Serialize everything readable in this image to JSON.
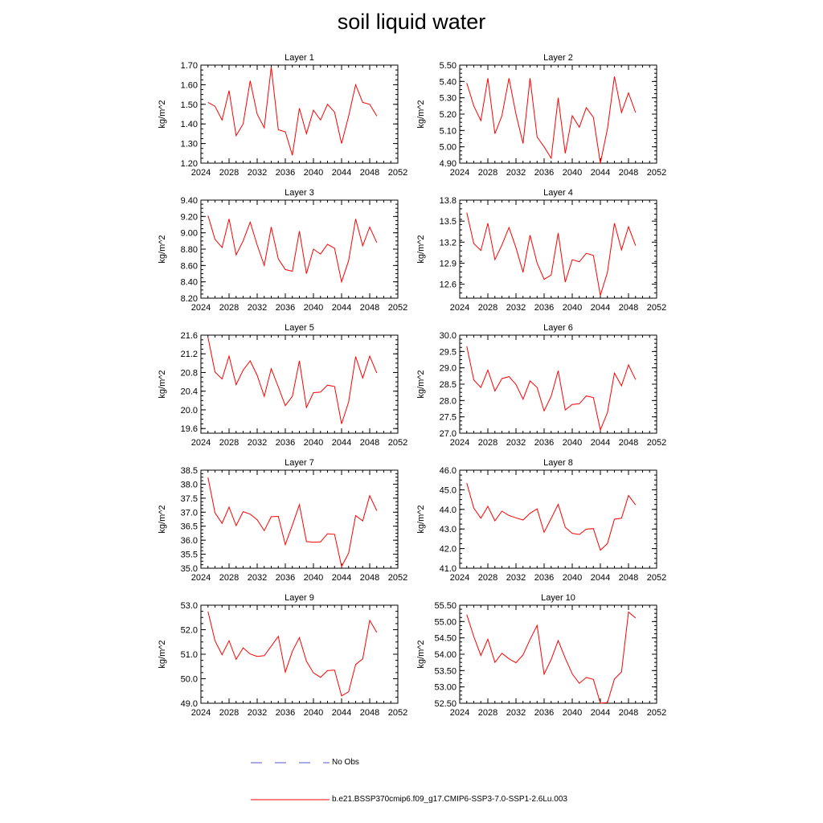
{
  "title": "soil liquid water",
  "legend": {
    "no_obs_label": "No Obs",
    "no_obs_color": "#5555cc",
    "model_label": "b.e21.BSSP370cmip6.f09_g17.CMIP6-SSP3-7.0-SSP1-2.6Lu.003",
    "model_color": "#ff0000"
  },
  "chart_data": [
    {
      "type": "line",
      "title": "Layer 1",
      "ylabel": "kg/m^2",
      "xlabel": "",
      "xlim": [
        2024,
        2052
      ],
      "xticks": [
        2024,
        2028,
        2032,
        2036,
        2040,
        2044,
        2048,
        2052
      ],
      "ylim": [
        1.2,
        1.7
      ],
      "yticks": [
        "1.20",
        "1.30",
        "1.40",
        "1.50",
        "1.60",
        "1.70"
      ],
      "x": [
        2025,
        2026,
        2027,
        2028,
        2029,
        2030,
        2031,
        2032,
        2033,
        2034,
        2035,
        2036,
        2037,
        2038,
        2039,
        2040,
        2041,
        2042,
        2043,
        2044,
        2045,
        2046,
        2047,
        2048,
        2049
      ],
      "series": [
        {
          "name": "b.e21.BSSP370cmip6.f09_g17.CMIP6-SSP3-7.0-SSP1-2.6Lu.003",
          "values": [
            1.51,
            1.49,
            1.42,
            1.57,
            1.34,
            1.4,
            1.62,
            1.45,
            1.38,
            1.69,
            1.37,
            1.36,
            1.24,
            1.48,
            1.35,
            1.47,
            1.42,
            1.5,
            1.46,
            1.3,
            1.44,
            1.6,
            1.51,
            1.5,
            1.44
          ]
        }
      ]
    },
    {
      "type": "line",
      "title": "Layer 2",
      "ylabel": "kg/m^2",
      "xlabel": "",
      "xlim": [
        2024,
        2052
      ],
      "xticks": [
        2024,
        2028,
        2032,
        2036,
        2040,
        2044,
        2048,
        2052
      ],
      "ylim": [
        4.9,
        5.5
      ],
      "yticks": [
        "4.90",
        "5.00",
        "5.10",
        "5.20",
        "5.30",
        "5.40",
        "5.50"
      ],
      "x": [
        2025,
        2026,
        2027,
        2028,
        2029,
        2030,
        2031,
        2032,
        2033,
        2034,
        2035,
        2036,
        2037,
        2038,
        2039,
        2040,
        2041,
        2042,
        2043,
        2044,
        2045,
        2046,
        2047,
        2048,
        2049
      ],
      "series": [
        {
          "name": "b.e21.BSSP370cmip6.f09_g17.CMIP6-SSP3-7.0-SSP1-2.6Lu.003",
          "values": [
            5.39,
            5.25,
            5.16,
            5.42,
            5.08,
            5.19,
            5.42,
            5.2,
            5.02,
            5.42,
            5.06,
            5.0,
            4.93,
            5.3,
            4.96,
            5.19,
            5.12,
            5.24,
            5.18,
            4.9,
            5.11,
            5.43,
            5.21,
            5.33,
            5.21
          ]
        }
      ]
    },
    {
      "type": "line",
      "title": "Layer 3",
      "ylabel": "kg/m^2",
      "xlabel": "",
      "xlim": [
        2024,
        2052
      ],
      "xticks": [
        2024,
        2028,
        2032,
        2036,
        2040,
        2044,
        2048,
        2052
      ],
      "ylim": [
        8.2,
        9.4
      ],
      "yticks": [
        "8.20",
        "8.40",
        "8.60",
        "8.80",
        "9.00",
        "9.20",
        "9.40"
      ],
      "x": [
        2025,
        2026,
        2027,
        2028,
        2029,
        2030,
        2031,
        2032,
        2033,
        2034,
        2035,
        2036,
        2037,
        2038,
        2039,
        2040,
        2041,
        2042,
        2043,
        2044,
        2045,
        2046,
        2047,
        2048,
        2049
      ],
      "series": [
        {
          "name": "b.e21.BSSP370cmip6.f09_g17.CMIP6-SSP3-7.0-SSP1-2.6Lu.003",
          "values": [
            9.21,
            8.92,
            8.82,
            9.17,
            8.73,
            8.9,
            9.13,
            8.85,
            8.6,
            9.07,
            8.68,
            8.55,
            8.53,
            9.02,
            8.5,
            8.8,
            8.74,
            8.86,
            8.81,
            8.4,
            8.66,
            9.17,
            8.84,
            9.07,
            8.88
          ]
        }
      ]
    },
    {
      "type": "line",
      "title": "Layer 4",
      "ylabel": "kg/m^2",
      "xlabel": "",
      "xlim": [
        2024,
        2052
      ],
      "xticks": [
        2024,
        2028,
        2032,
        2036,
        2040,
        2044,
        2048,
        2052
      ],
      "ylim": [
        12.4,
        13.8
      ],
      "yticks": [
        "12.6",
        "12.9",
        "13.2",
        "13.5",
        "13.8"
      ],
      "x": [
        2025,
        2026,
        2027,
        2028,
        2029,
        2030,
        2031,
        2032,
        2033,
        2034,
        2035,
        2036,
        2037,
        2038,
        2039,
        2040,
        2041,
        2042,
        2043,
        2044,
        2045,
        2046,
        2047,
        2048,
        2049
      ],
      "series": [
        {
          "name": "b.e21.BSSP370cmip6.f09_g17.CMIP6-SSP3-7.0-SSP1-2.6Lu.003",
          "values": [
            13.62,
            13.18,
            13.08,
            13.47,
            12.95,
            13.16,
            13.41,
            13.12,
            12.77,
            13.3,
            12.9,
            12.67,
            12.73,
            13.33,
            12.63,
            12.95,
            12.92,
            13.04,
            13.01,
            12.44,
            12.77,
            13.47,
            13.09,
            13.42,
            13.15
          ]
        }
      ]
    },
    {
      "type": "line",
      "title": "Layer 5",
      "ylabel": "kg/m^2",
      "xlabel": "",
      "xlim": [
        2024,
        2052
      ],
      "xticks": [
        2024,
        2028,
        2032,
        2036,
        2040,
        2044,
        2048,
        2052
      ],
      "ylim": [
        19.5,
        21.6
      ],
      "yticks": [
        "19.6",
        "20.0",
        "20.4",
        "20.8",
        "21.2",
        "21.6"
      ],
      "x": [
        2025,
        2026,
        2027,
        2028,
        2029,
        2030,
        2031,
        2032,
        2033,
        2034,
        2035,
        2036,
        2037,
        2038,
        2039,
        2040,
        2041,
        2042,
        2043,
        2044,
        2045,
        2046,
        2047,
        2048,
        2049
      ],
      "series": [
        {
          "name": "b.e21.BSSP370cmip6.f09_g17.CMIP6-SSP3-7.0-SSP1-2.6Lu.003",
          "values": [
            21.55,
            20.81,
            20.66,
            21.15,
            20.54,
            20.85,
            21.05,
            20.74,
            20.29,
            20.88,
            20.49,
            20.09,
            20.29,
            21.05,
            20.05,
            20.37,
            20.38,
            20.53,
            20.5,
            19.7,
            20.17,
            21.14,
            20.68,
            21.15,
            20.79
          ]
        }
      ]
    },
    {
      "type": "line",
      "title": "Layer 6",
      "ylabel": "kg/m^2",
      "xlabel": "",
      "xlim": [
        2024,
        2052
      ],
      "xticks": [
        2024,
        2028,
        2032,
        2036,
        2040,
        2044,
        2048,
        2052
      ],
      "ylim": [
        27.0,
        30.0
      ],
      "yticks": [
        "27.0",
        "27.5",
        "28.0",
        "28.5",
        "29.0",
        "29.5",
        "30.0"
      ],
      "x": [
        2025,
        2026,
        2027,
        2028,
        2029,
        2030,
        2031,
        2032,
        2033,
        2034,
        2035,
        2036,
        2037,
        2038,
        2039,
        2040,
        2041,
        2042,
        2043,
        2044,
        2045,
        2046,
        2047,
        2048,
        2049
      ],
      "series": [
        {
          "name": "b.e21.BSSP370cmip6.f09_g17.CMIP6-SSP3-7.0-SSP1-2.6Lu.003",
          "values": [
            29.66,
            28.63,
            28.4,
            28.93,
            28.29,
            28.67,
            28.73,
            28.49,
            28.04,
            28.6,
            28.4,
            27.68,
            28.13,
            28.91,
            27.71,
            27.88,
            27.9,
            28.14,
            28.09,
            27.1,
            27.63,
            28.84,
            28.45,
            29.09,
            28.64
          ]
        }
      ]
    },
    {
      "type": "line",
      "title": "Layer 7",
      "ylabel": "kg/m^2",
      "xlabel": "",
      "xlim": [
        2024,
        2052
      ],
      "xticks": [
        2024,
        2028,
        2032,
        2036,
        2040,
        2044,
        2048,
        2052
      ],
      "ylim": [
        35.0,
        38.5
      ],
      "yticks": [
        "35.0",
        "35.5",
        "36.0",
        "36.5",
        "37.0",
        "37.5",
        "38.0",
        "38.5"
      ],
      "x": [
        2025,
        2026,
        2027,
        2028,
        2029,
        2030,
        2031,
        2032,
        2033,
        2034,
        2035,
        2036,
        2037,
        2038,
        2039,
        2040,
        2041,
        2042,
        2043,
        2044,
        2045,
        2046,
        2047,
        2048,
        2049
      ],
      "series": [
        {
          "name": "b.e21.BSSP370cmip6.f09_g17.CMIP6-SSP3-7.0-SSP1-2.6Lu.003",
          "values": [
            38.24,
            36.98,
            36.6,
            37.18,
            36.52,
            37.02,
            36.93,
            36.73,
            36.34,
            36.84,
            36.85,
            35.84,
            36.54,
            37.27,
            35.95,
            35.93,
            35.94,
            36.23,
            36.21,
            35.06,
            35.54,
            36.88,
            36.69,
            37.59,
            37.05
          ]
        }
      ]
    },
    {
      "type": "line",
      "title": "Layer 8",
      "ylabel": "kg/m^2",
      "xlabel": "",
      "xlim": [
        2024,
        2052
      ],
      "xticks": [
        2024,
        2028,
        2032,
        2036,
        2040,
        2044,
        2048,
        2052
      ],
      "ylim": [
        41.0,
        46.0
      ],
      "yticks": [
        "41.0",
        "42.0",
        "43.0",
        "44.0",
        "45.0",
        "46.0"
      ],
      "x": [
        2025,
        2026,
        2027,
        2028,
        2029,
        2030,
        2031,
        2032,
        2033,
        2034,
        2035,
        2036,
        2037,
        2038,
        2039,
        2040,
        2041,
        2042,
        2043,
        2044,
        2045,
        2046,
        2047,
        2048,
        2049
      ],
      "series": [
        {
          "name": "b.e21.BSSP370cmip6.f09_g17.CMIP6-SSP3-7.0-SSP1-2.6Lu.003",
          "values": [
            45.34,
            44.07,
            43.55,
            44.15,
            43.42,
            43.91,
            43.69,
            43.57,
            43.46,
            43.8,
            44.03,
            42.83,
            43.54,
            44.26,
            43.09,
            42.78,
            42.72,
            42.99,
            43.02,
            41.92,
            42.26,
            43.5,
            43.55,
            44.71,
            44.23
          ]
        }
      ]
    },
    {
      "type": "line",
      "title": "Layer 9",
      "ylabel": "kg/m^2",
      "xlabel": "",
      "xlim": [
        2024,
        2052
      ],
      "xticks": [
        2024,
        2028,
        2032,
        2036,
        2040,
        2044,
        2048,
        2052
      ],
      "ylim": [
        49.0,
        53.0
      ],
      "yticks": [
        "49.0",
        "50.0",
        "51.0",
        "52.0",
        "53.0"
      ],
      "x": [
        2025,
        2026,
        2027,
        2028,
        2029,
        2030,
        2031,
        2032,
        2033,
        2034,
        2035,
        2036,
        2037,
        2038,
        2039,
        2040,
        2041,
        2042,
        2043,
        2044,
        2045,
        2046,
        2047,
        2048,
        2049
      ],
      "series": [
        {
          "name": "b.e21.BSSP370cmip6.f09_g17.CMIP6-SSP3-7.0-SSP1-2.6Lu.003",
          "values": [
            52.74,
            51.55,
            50.98,
            51.55,
            50.79,
            51.26,
            51.01,
            50.91,
            50.94,
            51.33,
            51.73,
            50.27,
            51.12,
            51.68,
            50.71,
            50.24,
            50.06,
            50.33,
            50.35,
            49.3,
            49.47,
            50.58,
            50.81,
            52.38,
            51.89
          ]
        }
      ]
    },
    {
      "type": "line",
      "title": "Layer 10",
      "ylabel": "kg/m^2",
      "xlabel": "",
      "xlim": [
        2024,
        2052
      ],
      "xticks": [
        2024,
        2028,
        2032,
        2036,
        2040,
        2044,
        2048,
        2052
      ],
      "ylim": [
        52.5,
        55.5
      ],
      "yticks": [
        "52.50",
        "53.00",
        "53.50",
        "54.00",
        "54.50",
        "55.00",
        "55.50"
      ],
      "x": [
        2025,
        2026,
        2027,
        2028,
        2029,
        2030,
        2031,
        2032,
        2033,
        2034,
        2035,
        2036,
        2037,
        2038,
        2039,
        2040,
        2041,
        2042,
        2043,
        2044,
        2045,
        2046,
        2047,
        2048,
        2049
      ],
      "series": [
        {
          "name": "b.e21.BSSP370cmip6.f09_g17.CMIP6-SSP3-7.0-SSP1-2.6Lu.003",
          "values": [
            55.21,
            54.54,
            53.96,
            54.46,
            53.75,
            54.03,
            53.86,
            53.74,
            53.98,
            54.45,
            54.88,
            53.39,
            53.84,
            54.42,
            53.88,
            53.4,
            53.11,
            53.29,
            53.23,
            52.5,
            52.52,
            53.24,
            53.46,
            55.29,
            55.11
          ]
        }
      ]
    }
  ]
}
